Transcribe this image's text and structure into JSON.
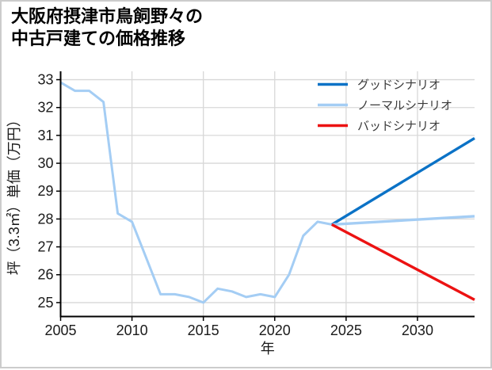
{
  "title": {
    "line1": "大阪府摂津市鳥飼野々の",
    "line2": "中古戸建ての価格推移"
  },
  "chart_data": {
    "type": "line",
    "title": "大阪府摂津市鳥飼野々の中古戸建ての価格推移",
    "xlabel": "年",
    "ylabel": "坪（3.3㎡）単価（万円）",
    "xlim": [
      2005,
      2034
    ],
    "ylim": [
      24.5,
      33.3
    ],
    "x_ticks": [
      2005,
      2010,
      2015,
      2020,
      2025,
      2030
    ],
    "y_ticks": [
      25,
      26,
      27,
      28,
      29,
      30,
      31,
      32,
      33
    ],
    "grid": true,
    "legend_position": "upper right",
    "colors": {
      "grid": "#d8d8d8",
      "axis": "#000000",
      "tick_text": "#1a1a1a",
      "legend_text": "#3a3a3a",
      "good": "#0b72c6",
      "normal": "#a4cdf4",
      "bad": "#ec1212"
    },
    "series": [
      {
        "id": "historical",
        "name": "historical",
        "legend": false,
        "color": "#a4cdf4",
        "x": [
          2005,
          2006,
          2007,
          2008,
          2009,
          2010,
          2011,
          2012,
          2013,
          2014,
          2015,
          2016,
          2017,
          2018,
          2019,
          2020,
          2021,
          2022,
          2023,
          2024
        ],
        "values": [
          32.9,
          32.6,
          32.6,
          32.2,
          28.2,
          27.9,
          26.6,
          25.3,
          25.3,
          25.2,
          25.0,
          25.5,
          25.4,
          25.2,
          25.3,
          25.2,
          26.0,
          27.4,
          27.9,
          27.8
        ]
      },
      {
        "id": "good",
        "name": "グッドシナリオ",
        "legend": true,
        "color": "#0b72c6",
        "x": [
          2024,
          2034
        ],
        "values": [
          27.8,
          30.9
        ]
      },
      {
        "id": "normal",
        "name": "ノーマルシナリオ",
        "legend": true,
        "color": "#a4cdf4",
        "x": [
          2024,
          2034
        ],
        "values": [
          27.8,
          28.1
        ]
      },
      {
        "id": "bad",
        "name": "バッドシナリオ",
        "legend": true,
        "color": "#ec1212",
        "x": [
          2024,
          2034
        ],
        "values": [
          27.8,
          25.1
        ]
      }
    ]
  }
}
